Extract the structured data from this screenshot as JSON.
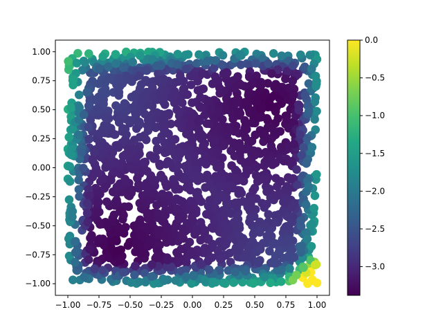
{
  "chart_data": {
    "type": "scatter",
    "title": "",
    "xlabel": "",
    "ylabel": "",
    "xlim": [
      -1.1,
      1.1
    ],
    "ylim": [
      -1.1,
      1.1
    ],
    "x_ticks": [
      -1.0,
      -0.75,
      -0.5,
      -0.25,
      0.0,
      0.25,
      0.5,
      0.75,
      1.0
    ],
    "x_tick_labels": [
      "−1.00",
      "−0.75",
      "−0.50",
      "−0.25",
      "0.00",
      "0.25",
      "0.50",
      "0.75",
      "1.00"
    ],
    "y_ticks": [
      1.0,
      0.75,
      0.5,
      0.25,
      0.0,
      -0.25,
      -0.5,
      -0.75,
      -1.0
    ],
    "y_tick_labels": [
      "1.00",
      "0.75",
      "0.50",
      "0.25",
      "0.00",
      "−0.25",
      "−0.50",
      "−0.75",
      "−1.00"
    ],
    "grid": false,
    "legend": "none",
    "colormap": "viridis",
    "colorbar": {
      "range": [
        -3.38,
        0.0
      ],
      "ticks": [
        0.0,
        -0.5,
        -1.0,
        -1.5,
        -2.0,
        -2.5,
        -3.0
      ],
      "tick_labels": [
        "0.0",
        "−0.5",
        "−1.0",
        "−1.5",
        "−2.0",
        "−2.5",
        "−3.0"
      ]
    },
    "points": {
      "distribution": "uniform random in [-1, 1] x [-1, 1]",
      "count": 2000,
      "value_range": [
        -3.38,
        0.0
      ],
      "low_value_regions": [
        [
          -0.6,
          -0.7
        ],
        [
          0.65,
          0.55
        ]
      ],
      "high_value_region": [
        0.95,
        -0.95
      ]
    }
  }
}
